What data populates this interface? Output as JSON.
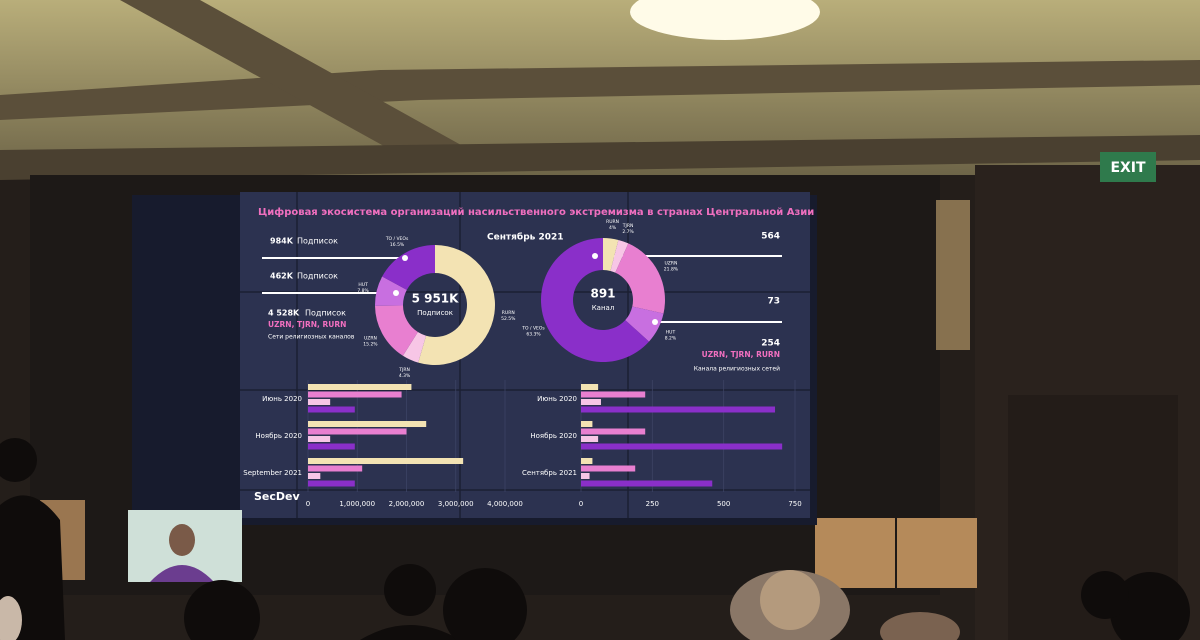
{
  "room": {
    "exit_sign": "EXIT"
  },
  "screen": {
    "title": "Цифровая экосистема организаций насильственного экстремизма в странах Центральной Азии",
    "date": "Сентябрь 2021",
    "logo": "SecDev",
    "left_stats": [
      {
        "value": "984K",
        "label": "Подписок"
      },
      {
        "value": "462K",
        "label": "Подписок"
      },
      {
        "value": "4 528K",
        "label": "Подписок"
      }
    ],
    "left_networks": "UZRN, TJRN, RURN",
    "left_note": "Сети религиозных каналов",
    "left_donut": {
      "center_value": "5 951K",
      "center_label": "Подписок",
      "segments": [
        {
          "label": "RURN",
          "value": 52.5,
          "value_label": "52.5%",
          "color": "#f3e3b3"
        },
        {
          "label": "TJRN",
          "value": 4.3,
          "value_label": "4.3%",
          "color": "#f7c6e6"
        },
        {
          "label": "UZRN",
          "value": 15.2,
          "value_label": "15.2%",
          "color": "#e87fd0"
        },
        {
          "label": "HUT",
          "value": 7.8,
          "value_label": "7.8%",
          "color": "#c86fe0"
        },
        {
          "label": "TO / VEOs",
          "value": 16.5,
          "value_label": "16.5%",
          "color": "#8a2fc9"
        }
      ]
    },
    "right_stats": [
      "564",
      "73",
      "254"
    ],
    "right_networks": "UZRN, TJRN, RURN",
    "right_note": "Канала религиозных сетей",
    "right_donut": {
      "center_value": "891",
      "center_label": "Канал",
      "segments": [
        {
          "label": "RURN",
          "value": 4,
          "value_label": "4%",
          "color": "#f3e3b3"
        },
        {
          "label": "TJRN",
          "value": 2.7,
          "value_label": "2.7%",
          "color": "#f7c6e6"
        },
        {
          "label": "UZRN",
          "value": 21.8,
          "value_label": "21.8%",
          "color": "#e87fd0"
        },
        {
          "label": "HUT",
          "value": 8.2,
          "value_label": "8.2%",
          "color": "#c86fe0"
        },
        {
          "label": "TO / VEOs",
          "value": 63.3,
          "value_label": "63.3%",
          "color": "#8a2fc9"
        }
      ]
    },
    "left_bars": {
      "categories": [
        "Июнь 2020",
        "Ноябрь 2020",
        "September 2021"
      ],
      "xlim": [
        0,
        4000000
      ],
      "xticks": [
        0,
        {
          "value": 1000000,
          "label": "1,000,000"
        },
        {
          "value": 2000000,
          "label": "2,000,000"
        },
        {
          "value": 3000000,
          "label": "3,000,000"
        },
        {
          "value": 4000000,
          "label": "4,000,000"
        }
      ],
      "series": [
        {
          "color": "#f3e3b3",
          "values": [
            2100000,
            2400000,
            3150000
          ]
        },
        {
          "color": "#e87fd0",
          "values": [
            1900000,
            2000000,
            1100000
          ]
        },
        {
          "color": "#f7c6e6",
          "values": [
            450000,
            450000,
            250000
          ]
        },
        {
          "color": "#8a2fc9",
          "values": [
            950000,
            950000,
            950000
          ]
        }
      ]
    },
    "right_bars": {
      "categories": [
        "Июнь 2020",
        "Ноябрь 2020",
        "Сентябрь 2021"
      ],
      "xlim": [
        0,
        750
      ],
      "xticks": [
        0,
        250,
        500,
        750
      ],
      "series": [
        {
          "color": "#f3e3b3",
          "values": [
            60,
            40,
            40
          ]
        },
        {
          "color": "#e87fd0",
          "values": [
            225,
            225,
            190
          ]
        },
        {
          "color": "#f7c6e6",
          "values": [
            70,
            60,
            30
          ]
        },
        {
          "color": "#8a2fc9",
          "values": [
            680,
            705,
            460
          ]
        }
      ]
    }
  }
}
